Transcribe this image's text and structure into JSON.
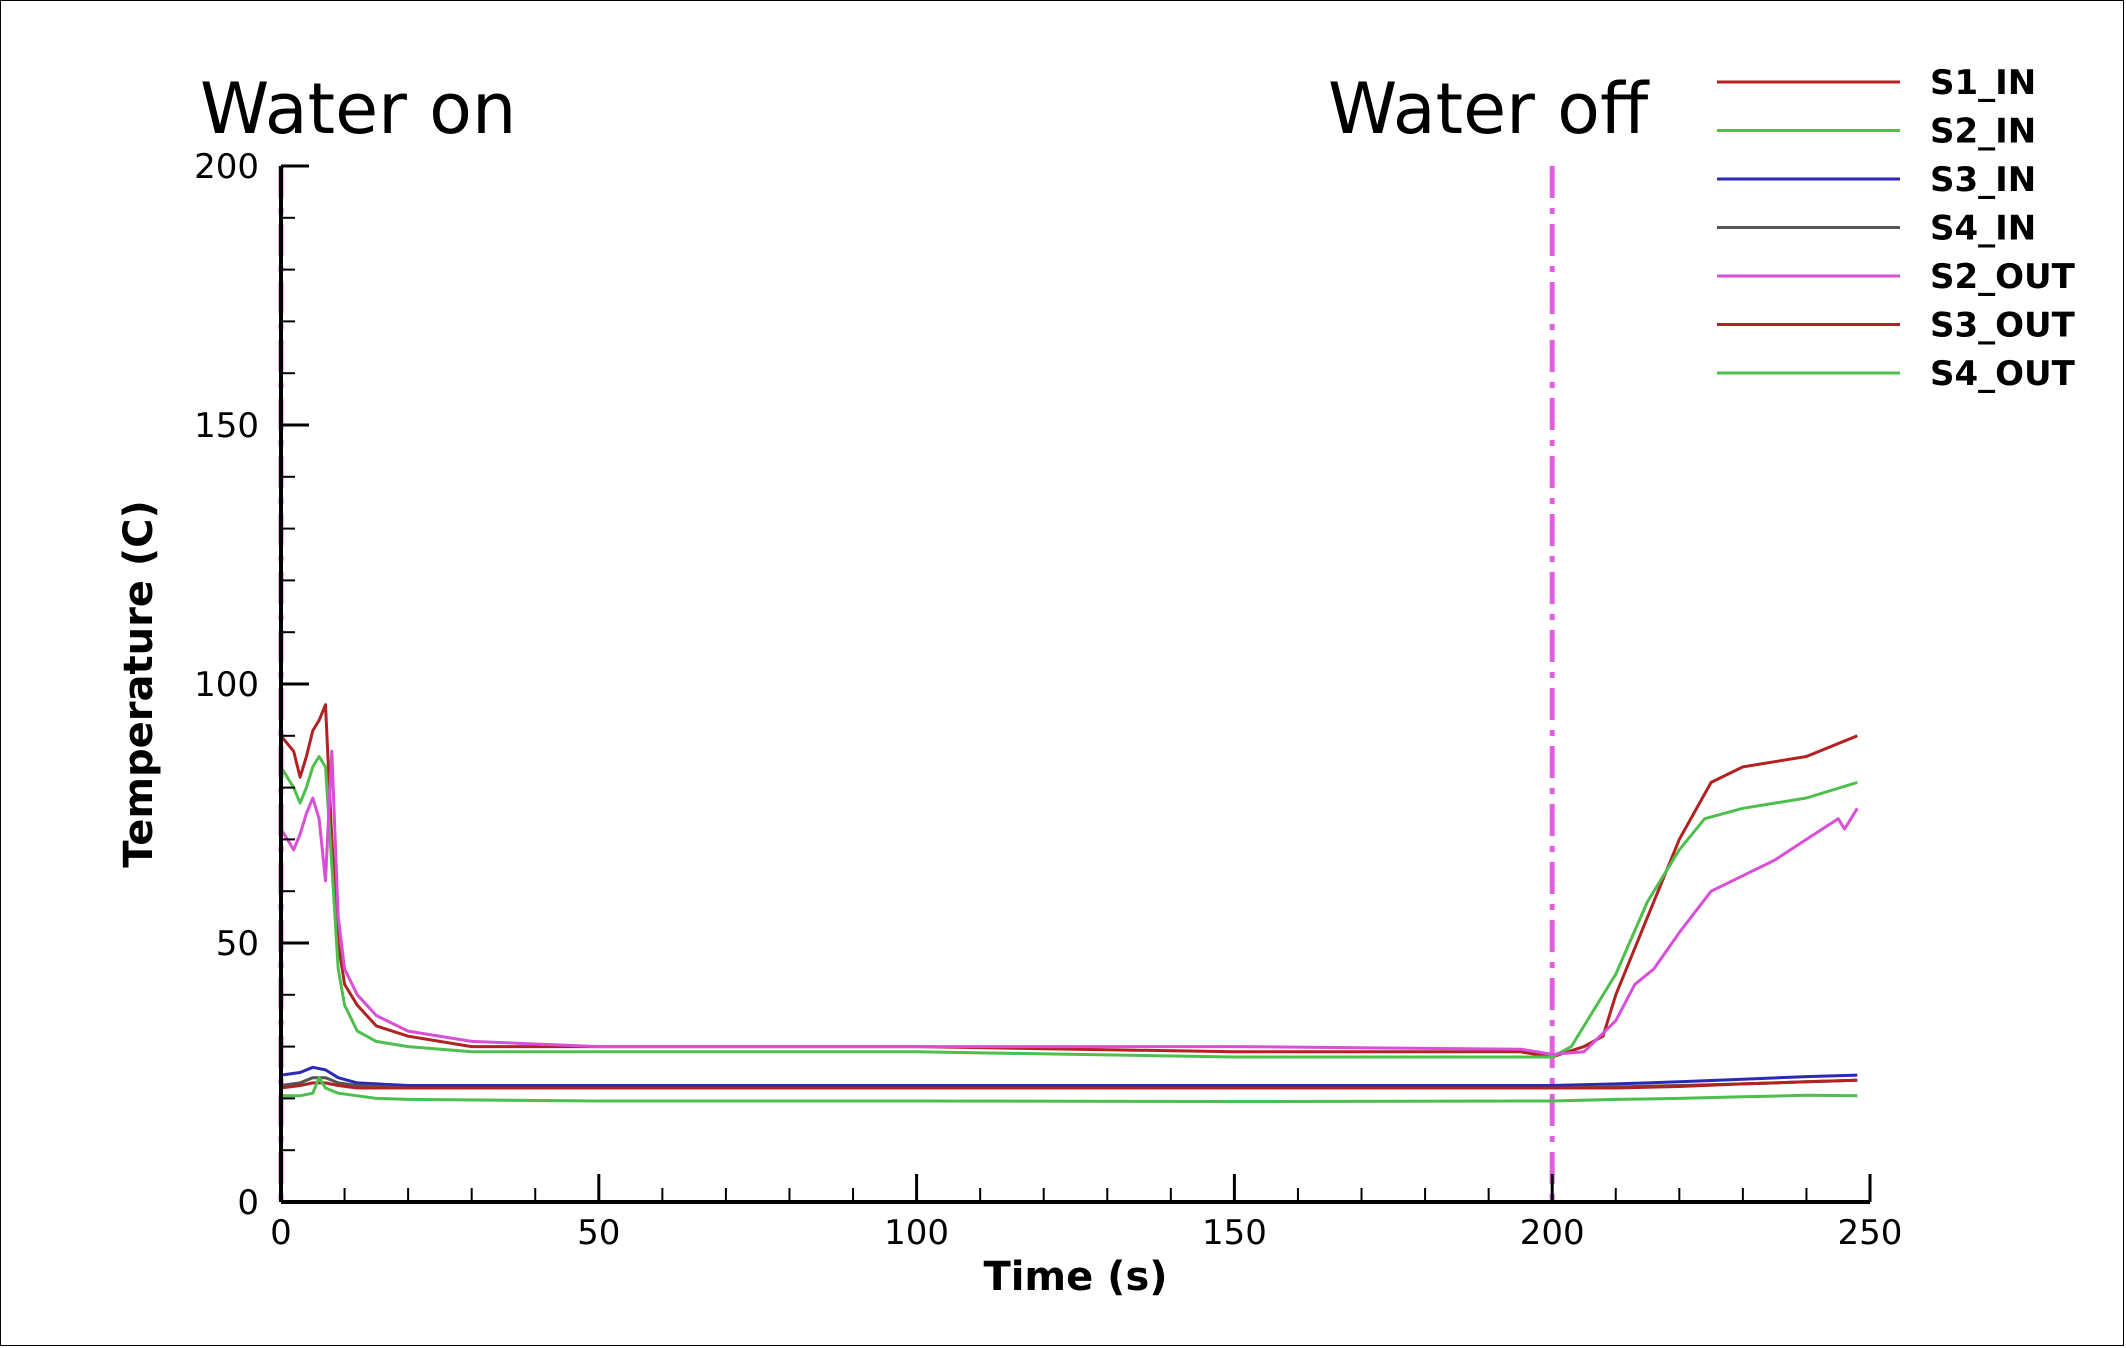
{
  "chart_data": {
    "type": "line",
    "title": "",
    "xlabel": "Time (s)",
    "ylabel": "Temperature (C)",
    "xlim": [
      0,
      250
    ],
    "ylim": [
      0,
      200
    ],
    "xticks": [
      0,
      50,
      100,
      150,
      200,
      250
    ],
    "yticks": [
      0,
      50,
      100,
      150,
      200
    ],
    "grid": false,
    "legend_position": "top-right",
    "annotations": [
      {
        "text": "Water on",
        "x": 0
      },
      {
        "text": "Water off",
        "x": 200
      }
    ],
    "vlines": [
      {
        "x": 0,
        "color": "#e060e0",
        "style": "dashdot"
      },
      {
        "x": 200,
        "color": "#e060e0",
        "style": "dashdot"
      }
    ],
    "series": [
      {
        "name": "S1_IN",
        "color": "#b22222",
        "x": [
          0,
          2,
          3,
          4,
          5,
          6,
          7,
          8,
          9,
          10,
          12,
          15,
          20,
          30,
          50,
          100,
          150,
          195,
          200,
          205,
          208,
          210,
          215,
          220,
          225,
          230,
          240,
          248
        ],
        "y": [
          90,
          87,
          82,
          86,
          91,
          93,
          96,
          70,
          50,
          42,
          38,
          34,
          32,
          30,
          30,
          30,
          29,
          29,
          28,
          30,
          32,
          40,
          55,
          70,
          81,
          84,
          86,
          90
        ]
      },
      {
        "name": "S2_IN",
        "color": "#4dbf4d",
        "x": [
          0,
          2,
          3,
          4,
          5,
          6,
          7,
          8,
          9,
          10,
          12,
          15,
          20,
          30,
          50,
          100,
          150,
          195,
          200,
          203,
          205,
          210,
          215,
          220,
          224,
          230,
          240,
          248
        ],
        "y": [
          84,
          80,
          77,
          80,
          84,
          86,
          84,
          65,
          45,
          38,
          33,
          31,
          30,
          29,
          29,
          29,
          28,
          28,
          28,
          30,
          34,
          44,
          58,
          68,
          74,
          76,
          78,
          81
        ]
      },
      {
        "name": "S3_IN",
        "color": "#2a2ab4",
        "x": [
          0,
          3,
          5,
          7,
          9,
          12,
          20,
          50,
          100,
          150,
          200,
          210,
          220,
          230,
          240,
          248
        ],
        "y": [
          24.5,
          25,
          26,
          25.5,
          24,
          23,
          22.5,
          22.5,
          22.5,
          22.5,
          22.5,
          22.8,
          23.2,
          23.7,
          24.2,
          24.5
        ]
      },
      {
        "name": "S4_IN",
        "color": "#555555",
        "x": [
          0,
          3,
          5,
          7,
          9,
          12,
          20,
          50,
          100,
          150,
          200,
          210,
          220,
          230,
          240,
          248
        ],
        "y": [
          22.5,
          23,
          24,
          24,
          23,
          22.5,
          22,
          22,
          22,
          22,
          22,
          22.2,
          22.5,
          22.8,
          23.2,
          23.5
        ]
      },
      {
        "name": "S2_OUT",
        "color": "#d84fd8",
        "x": [
          0,
          1,
          2,
          3,
          4,
          5,
          6,
          7,
          8,
          9,
          10,
          12,
          15,
          20,
          30,
          50,
          100,
          150,
          195,
          200,
          205,
          210,
          213,
          216,
          220,
          225,
          230,
          235,
          240,
          245,
          246,
          248
        ],
        "y": [
          72,
          70,
          68,
          71,
          75,
          78,
          74,
          62,
          87,
          55,
          45,
          40,
          36,
          33,
          31,
          30,
          30,
          30,
          29.5,
          28.5,
          29,
          35,
          42,
          45,
          52,
          60,
          63,
          66,
          70,
          74,
          72,
          76
        ]
      },
      {
        "name": "S3_OUT",
        "color": "#b22222",
        "x": [
          0,
          3,
          5,
          7,
          9,
          12,
          20,
          50,
          100,
          150,
          200,
          210,
          220,
          230,
          240,
          248
        ],
        "y": [
          22,
          22.5,
          23,
          23,
          22.5,
          22,
          22,
          22,
          22,
          22,
          22,
          22,
          22.3,
          22.8,
          23.2,
          23.5
        ]
      },
      {
        "name": "S4_OUT",
        "color": "#4dbf4d",
        "x": [
          0,
          3,
          5,
          6,
          7,
          9,
          12,
          15,
          20,
          50,
          100,
          150,
          200,
          210,
          220,
          230,
          240,
          248
        ],
        "y": [
          20.5,
          20.5,
          21,
          24,
          22,
          21,
          20.5,
          20,
          19.8,
          19.5,
          19.5,
          19.4,
          19.5,
          19.8,
          20,
          20.3,
          20.6,
          20.5
        ]
      }
    ]
  }
}
